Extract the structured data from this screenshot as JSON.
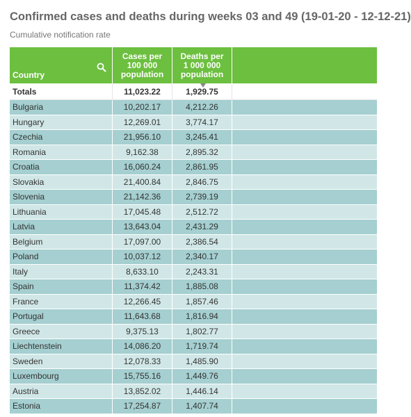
{
  "title": "Confirmed cases and deaths during weeks 03 and 49 (19-01-20 - 12-12-21)",
  "subtitle": "Cumulative notification rate",
  "colors": {
    "header": "#6cbf3f",
    "row_dark": "#a5cfd0",
    "row_light": "#d1e7e7"
  },
  "table": {
    "headers": {
      "country": "Country",
      "cases": [
        "Cases per",
        "100 000",
        "population"
      ],
      "deaths": [
        "Deaths per",
        "1 000 000",
        "population"
      ]
    },
    "totals": {
      "label": "Totals",
      "cases": "11,023.22",
      "deaths": "1,929.75"
    },
    "rows": [
      {
        "country": "Bulgaria",
        "cases": "10,202.17",
        "deaths": "4,212.26"
      },
      {
        "country": "Hungary",
        "cases": "12,269.01",
        "deaths": "3,774.17"
      },
      {
        "country": "Czechia",
        "cases": "21,956.10",
        "deaths": "3,245.41"
      },
      {
        "country": "Romania",
        "cases": "9,162.38",
        "deaths": "2,895.32"
      },
      {
        "country": "Croatia",
        "cases": "16,060.24",
        "deaths": "2,861.95"
      },
      {
        "country": "Slovakia",
        "cases": "21,400.84",
        "deaths": "2,846.75"
      },
      {
        "country": "Slovenia",
        "cases": "21,142.36",
        "deaths": "2,739.19"
      },
      {
        "country": "Lithuania",
        "cases": "17,045.48",
        "deaths": "2,512.72"
      },
      {
        "country": "Latvia",
        "cases": "13,643.04",
        "deaths": "2,431.29"
      },
      {
        "country": "Belgium",
        "cases": "17,097.00",
        "deaths": "2,386.54"
      },
      {
        "country": "Poland",
        "cases": "10,037.12",
        "deaths": "2,340.17"
      },
      {
        "country": "Italy",
        "cases": "8,633.10",
        "deaths": "2,243.31"
      },
      {
        "country": "Spain",
        "cases": "11,374.42",
        "deaths": "1,885.08"
      },
      {
        "country": "France",
        "cases": "12,266.45",
        "deaths": "1,857.46"
      },
      {
        "country": "Portugal",
        "cases": "11,643.68",
        "deaths": "1,816.94"
      },
      {
        "country": "Greece",
        "cases": "9,375.13",
        "deaths": "1,802.77"
      },
      {
        "country": "Liechtenstein",
        "cases": "14,086.20",
        "deaths": "1,719.74"
      },
      {
        "country": "Sweden",
        "cases": "12,078.33",
        "deaths": "1,485.90"
      },
      {
        "country": "Luxembourg",
        "cases": "15,755.16",
        "deaths": "1,449.76"
      },
      {
        "country": "Austria",
        "cases": "13,852.02",
        "deaths": "1,446.14"
      },
      {
        "country": "Estonia",
        "cases": "17,254.87",
        "deaths": "1,407.74"
      }
    ]
  }
}
